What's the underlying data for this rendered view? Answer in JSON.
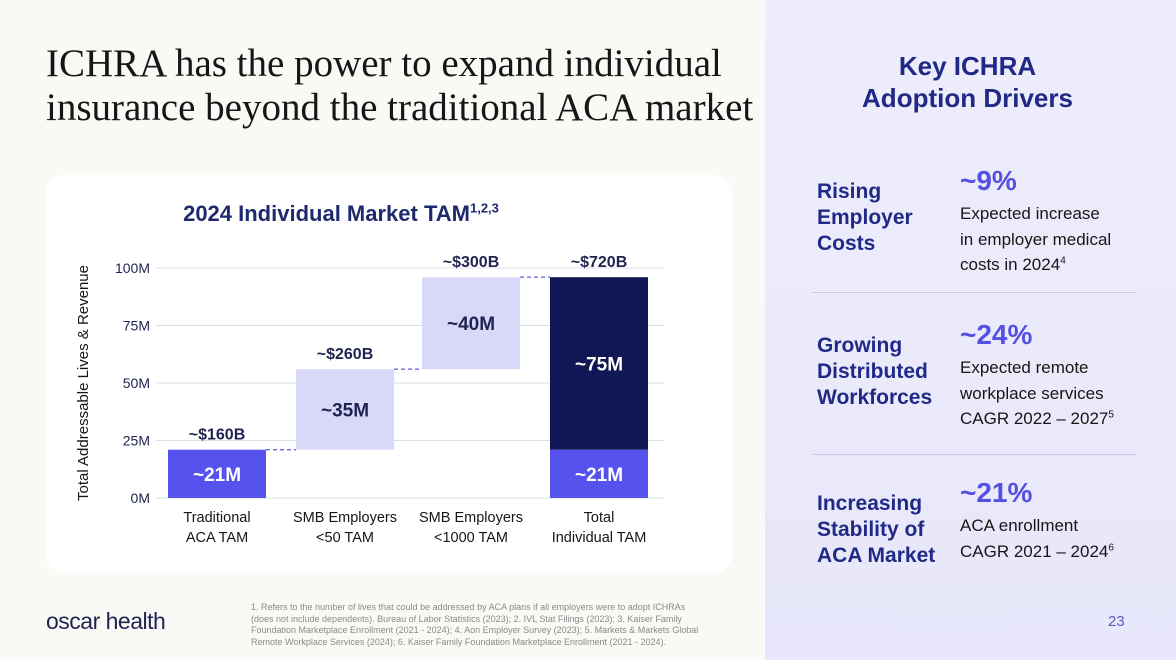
{
  "headline": {
    "line1": "ICHRA has the power to expand individual",
    "line2": "insurance beyond the traditional ACA market"
  },
  "chart_data": {
    "type": "bar",
    "subtype": "waterfall",
    "title": "2024 Individual Market TAM",
    "title_superscript": "1,2,3",
    "ylabel": "Total Addressable Lives & Revenue",
    "xlabel": "",
    "ylim": [
      0,
      100
    ],
    "y_unit": "M",
    "y_ticks": [
      "0M",
      "25M",
      "50M",
      "75M",
      "100M"
    ],
    "y_tick_values": [
      0,
      25,
      50,
      75,
      100
    ],
    "grid": true,
    "categories": [
      [
        "Traditional",
        "ACA TAM"
      ],
      [
        "SMB Employers",
        "<50 TAM"
      ],
      [
        "SMB Employers",
        "<1000 TAM"
      ],
      [
        "Total",
        "Individual TAM"
      ]
    ],
    "bars": [
      {
        "category": 0,
        "base": 0,
        "value": 21,
        "label": "~21M",
        "color": "#5552ee",
        "label_color": "#ffffff"
      },
      {
        "category": 1,
        "base": 21,
        "value": 35,
        "label": "~35M",
        "color": "#d8d8f8",
        "label_color": "#1f2350"
      },
      {
        "category": 2,
        "base": 56,
        "value": 40,
        "label": "~40M",
        "color": "#d8d8f8",
        "label_color": "#1f2350"
      },
      {
        "category": 3,
        "base": 0,
        "value": 21,
        "label": "~21M",
        "color": "#5552ee",
        "label_color": "#ffffff"
      },
      {
        "category": 3,
        "base": 21,
        "value": 75,
        "label": "~75M",
        "color": "#111655",
        "label_color": "#ffffff"
      }
    ],
    "revenue_labels": [
      "~$160B",
      "~$260B",
      "~$300B",
      "~$720B"
    ]
  },
  "drivers": {
    "title_line1": "Key ICHRA",
    "title_line2": "Adoption Drivers",
    "items": [
      {
        "label_lines": [
          "Rising",
          "Employer",
          "Costs"
        ],
        "stat": "~9%",
        "desc_lines": [
          "Expected increase",
          "in employer medical",
          "costs in 2024"
        ],
        "footnote": "4"
      },
      {
        "label_lines": [
          "Growing",
          "Distributed",
          "Workforces"
        ],
        "stat": "~24%",
        "desc_lines": [
          "Expected remote",
          "workplace services",
          "CAGR 2022 – 2027"
        ],
        "footnote": "5"
      },
      {
        "label_lines": [
          "Increasing",
          "Stability of",
          "ACA Market"
        ],
        "stat": "~21%",
        "desc_lines": [
          "ACA enrollment",
          "CAGR 2021 – 2024"
        ],
        "footnote": "6"
      }
    ]
  },
  "footer": {
    "logo": "oscar health",
    "footnote_lines": [
      "1.  Refers to the number of lives that could be addressed by ACA plans if all employers were to adopt ICHRAs",
      "(does not include dependents). Bureau of Labor Statistics (2023); 2. IVL Stat Filings (2023); 3. Kaiser Family",
      "Foundation Marketplace Enrollment (2021 - 2024); 4. Aon Employer Survey (2023); 5. Markets & Markets Global",
      "Remote Workplace Services (2024); 6. Kaiser Family Foundation Marketplace Enrollment (2021 - 2024)."
    ],
    "page_number": "23"
  }
}
